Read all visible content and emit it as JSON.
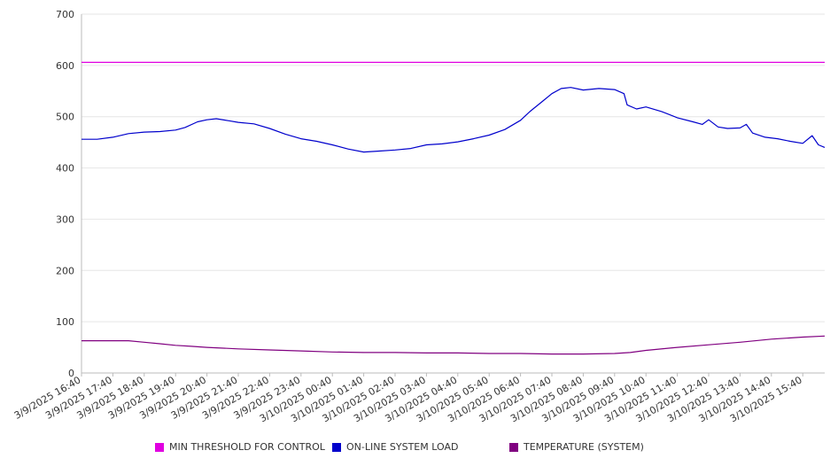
{
  "chart_data": {
    "type": "line",
    "title": "",
    "xlabel": "",
    "ylabel": "",
    "ylim": [
      0,
      700
    ],
    "yticks": [
      "0",
      "100",
      "200",
      "300",
      "400",
      "500",
      "600",
      "700"
    ],
    "grid": "horizontal",
    "legend_position": "bottom",
    "x_tick_labels": [
      "3/9/2025 16:40",
      "3/9/2025 17:40",
      "3/9/2025 18:40",
      "3/9/2025 19:40",
      "3/9/2025 20:40",
      "3/9/2025 21:40",
      "3/9/2025 22:40",
      "3/9/2025 23:40",
      "3/10/2025 00:40",
      "3/10/2025 01:40",
      "3/10/2025 02:40",
      "3/10/2025 03:40",
      "3/10/2025 04:40",
      "3/10/2025 05:40",
      "3/10/2025 06:40",
      "3/10/2025 07:40",
      "3/10/2025 08:40",
      "3/10/2025 09:40",
      "3/10/2025 10:40",
      "3/10/2025 11:40",
      "3/10/2025 12:40",
      "3/10/2025 13:40",
      "3/10/2025 14:40",
      "3/10/2025 15:40"
    ],
    "x_range_hours": [
      0,
      23.7
    ],
    "series": [
      {
        "name": "MIN THRESHOLD FOR CONTROL",
        "color": "#e000e0",
        "points": [
          [
            0,
            606
          ],
          [
            23.7,
            606
          ]
        ]
      },
      {
        "name": "ON-LINE SYSTEM LOAD",
        "color": "#0000cc",
        "points": [
          [
            0,
            456
          ],
          [
            0.5,
            456
          ],
          [
            1,
            460
          ],
          [
            1.5,
            467
          ],
          [
            2,
            470
          ],
          [
            2.5,
            471
          ],
          [
            3,
            474
          ],
          [
            3.3,
            479
          ],
          [
            3.7,
            490
          ],
          [
            4,
            494
          ],
          [
            4.3,
            496
          ],
          [
            4.7,
            492
          ],
          [
            5,
            489
          ],
          [
            5.5,
            486
          ],
          [
            6,
            477
          ],
          [
            6.5,
            466
          ],
          [
            7,
            457
          ],
          [
            7.5,
            452
          ],
          [
            8,
            445
          ],
          [
            8.5,
            437
          ],
          [
            9,
            431
          ],
          [
            9.5,
            433
          ],
          [
            10,
            435
          ],
          [
            10.5,
            438
          ],
          [
            11,
            445
          ],
          [
            11.5,
            447
          ],
          [
            12,
            451
          ],
          [
            12.5,
            457
          ],
          [
            13,
            464
          ],
          [
            13.5,
            475
          ],
          [
            14,
            493
          ],
          [
            14.3,
            510
          ],
          [
            14.7,
            530
          ],
          [
            15,
            545
          ],
          [
            15.3,
            555
          ],
          [
            15.6,
            557
          ],
          [
            16,
            552
          ],
          [
            16.5,
            555
          ],
          [
            17,
            553
          ],
          [
            17.3,
            545
          ],
          [
            17.4,
            523
          ],
          [
            17.7,
            515
          ],
          [
            18,
            519
          ],
          [
            18.5,
            510
          ],
          [
            19,
            498
          ],
          [
            19.5,
            490
          ],
          [
            19.8,
            485
          ],
          [
            20,
            494
          ],
          [
            20.3,
            480
          ],
          [
            20.6,
            477
          ],
          [
            21,
            478
          ],
          [
            21.2,
            485
          ],
          [
            21.4,
            468
          ],
          [
            21.8,
            460
          ],
          [
            22.2,
            457
          ],
          [
            22.6,
            452
          ],
          [
            23,
            448
          ],
          [
            23.3,
            463
          ],
          [
            23.5,
            445
          ],
          [
            23.7,
            440
          ]
        ]
      },
      {
        "name": "TEMPERATURE (SYSTEM)",
        "color": "#800080",
        "points": [
          [
            0,
            63
          ],
          [
            1.5,
            63
          ],
          [
            2,
            60
          ],
          [
            2.5,
            57
          ],
          [
            3,
            54
          ],
          [
            3.5,
            52
          ],
          [
            4,
            50
          ],
          [
            5,
            47
          ],
          [
            6,
            45
          ],
          [
            7,
            43
          ],
          [
            8,
            41
          ],
          [
            9,
            40
          ],
          [
            10,
            40
          ],
          [
            11,
            39
          ],
          [
            12,
            39
          ],
          [
            13,
            38
          ],
          [
            14,
            38
          ],
          [
            15,
            37
          ],
          [
            16,
            37
          ],
          [
            17,
            38
          ],
          [
            17.5,
            40
          ],
          [
            18,
            44
          ],
          [
            19,
            50
          ],
          [
            20,
            55
          ],
          [
            21,
            60
          ],
          [
            22,
            66
          ],
          [
            23,
            70
          ],
          [
            23.7,
            72
          ]
        ]
      }
    ]
  }
}
